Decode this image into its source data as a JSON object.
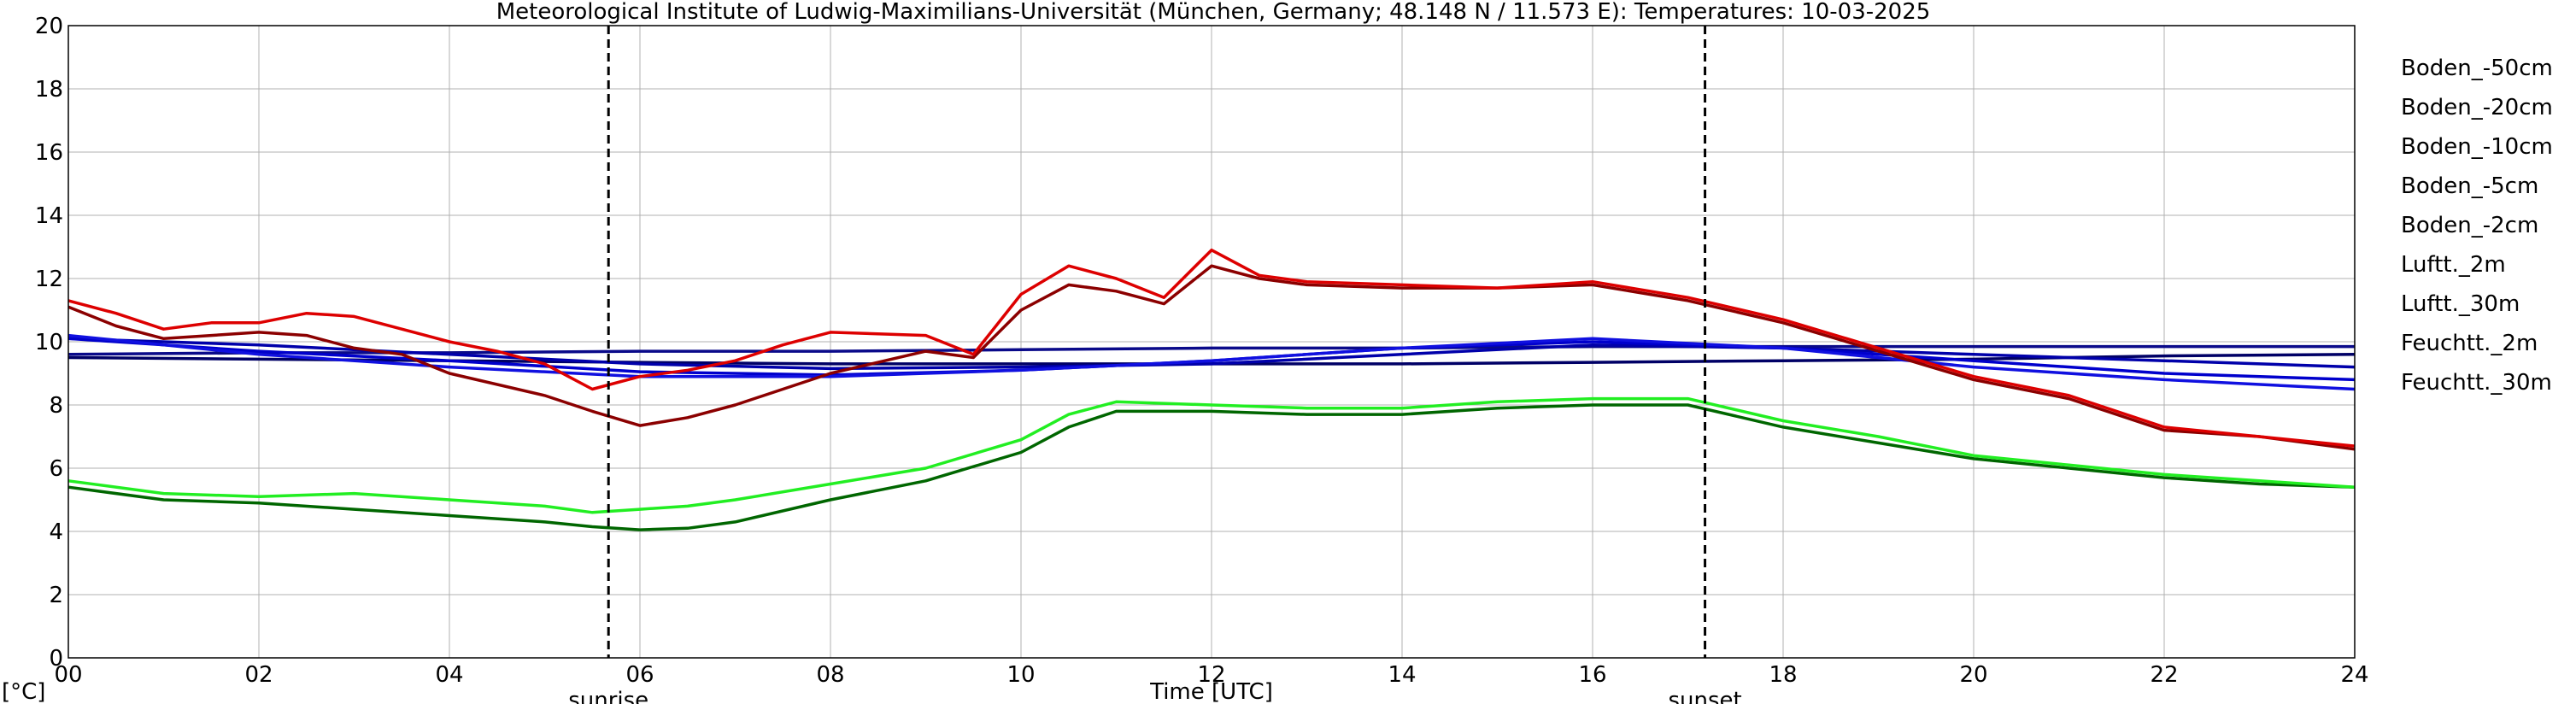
{
  "chart_data": {
    "type": "line",
    "title": "Meteorological Institute of Ludwig-Maximilians-Universität (München, Germany; 48.148 N / 11.573 E):  Temperatures: 10-03-2025",
    "xlabel": "Time [UTC]",
    "ylabel": "[°C]",
    "xlim": [
      0,
      24
    ],
    "ylim": [
      0,
      20
    ],
    "x_ticks": [
      0,
      2,
      4,
      6,
      8,
      10,
      12,
      14,
      16,
      18,
      20,
      22,
      24
    ],
    "x_tick_labels": [
      "00",
      "02",
      "04",
      "06",
      "08",
      "10",
      "12",
      "14",
      "16",
      "18",
      "20",
      "22",
      "24"
    ],
    "y_ticks": [
      0,
      2,
      4,
      6,
      8,
      10,
      12,
      14,
      16,
      18,
      20
    ],
    "y_tick_labels": [
      "0",
      "2",
      "4",
      "6",
      "8",
      "10",
      "12",
      "14",
      "16",
      "18",
      "20"
    ],
    "grid": true,
    "legend_position": "right",
    "markers": [
      {
        "label": "sunrise",
        "x": 5.67
      },
      {
        "label": "sunset",
        "x": 17.18
      }
    ],
    "series": [
      {
        "name": "Boden_-50cm",
        "color": "#000066",
        "x": [
          0,
          2,
          4,
          6,
          8,
          10,
          12,
          14,
          16,
          18,
          20,
          22,
          24
        ],
        "y": [
          9.5,
          9.45,
          9.4,
          9.35,
          9.3,
          9.3,
          9.3,
          9.3,
          9.35,
          9.4,
          9.45,
          9.55,
          9.6
        ]
      },
      {
        "name": "Boden_-20cm",
        "color": "#0a0a8a",
        "x": [
          0,
          2,
          4,
          6,
          8,
          10,
          12,
          14,
          16,
          18,
          20,
          22,
          24
        ],
        "y": [
          9.6,
          9.65,
          9.65,
          9.7,
          9.7,
          9.75,
          9.8,
          9.8,
          9.85,
          9.85,
          9.85,
          9.85,
          9.85
        ]
      },
      {
        "name": "Boden_-10cm",
        "color": "#0000aa",
        "x": [
          0,
          2,
          4,
          6,
          8,
          10,
          12,
          14,
          16,
          18,
          20,
          22,
          24
        ],
        "y": [
          10.1,
          9.9,
          9.6,
          9.3,
          9.15,
          9.2,
          9.3,
          9.6,
          9.9,
          9.8,
          9.6,
          9.4,
          9.2
        ]
      },
      {
        "name": "Boden_-5cm",
        "color": "#0000cc",
        "x": [
          0,
          2,
          4,
          6,
          8,
          10,
          12,
          14,
          16,
          18,
          20,
          22,
          24
        ],
        "y": [
          10.1,
          9.7,
          9.4,
          9.05,
          8.95,
          9.1,
          9.4,
          9.8,
          10.0,
          9.8,
          9.4,
          9.0,
          8.8
        ]
      },
      {
        "name": "Boden_-2cm",
        "color": "#1010e0",
        "x": [
          0,
          2,
          4,
          6,
          8,
          10,
          12,
          14,
          16,
          18,
          20,
          22,
          24
        ],
        "y": [
          10.2,
          9.6,
          9.2,
          8.9,
          8.9,
          9.1,
          9.4,
          9.8,
          10.1,
          9.8,
          9.2,
          8.8,
          8.5
        ]
      },
      {
        "name": "Luftt._2m",
        "color": "#8b0000",
        "x": [
          0,
          0.5,
          1,
          2,
          2.5,
          3,
          3.5,
          4,
          5,
          5.5,
          6,
          6.5,
          7,
          8,
          9,
          9.5,
          10,
          10.5,
          11,
          11.5,
          12,
          12.5,
          13,
          14,
          15,
          16,
          17,
          18,
          19,
          20,
          21,
          22,
          23,
          24
        ],
        "y": [
          11.1,
          10.5,
          10.1,
          10.3,
          10.2,
          9.8,
          9.6,
          9.0,
          8.3,
          7.8,
          7.35,
          7.6,
          8.0,
          9.0,
          9.7,
          9.5,
          11.0,
          11.8,
          11.6,
          11.2,
          12.4,
          12.0,
          11.8,
          11.7,
          11.7,
          11.8,
          11.3,
          10.6,
          9.7,
          8.8,
          8.2,
          7.2,
          7.0,
          6.6
        ]
      },
      {
        "name": "Luftt._30m",
        "color": "#dd0000",
        "x": [
          0,
          0.5,
          1,
          1.5,
          2,
          2.5,
          3,
          3.5,
          4,
          4.5,
          5,
          5.5,
          6,
          6.5,
          7,
          7.5,
          8,
          9,
          9.5,
          10,
          10.5,
          11,
          11.5,
          12,
          12.5,
          13,
          14,
          15,
          16,
          17,
          18,
          19,
          20,
          21,
          22,
          23,
          24
        ],
        "y": [
          11.3,
          10.9,
          10.4,
          10.6,
          10.6,
          10.9,
          10.8,
          10.4,
          10.0,
          9.7,
          9.3,
          8.5,
          8.9,
          9.1,
          9.4,
          9.9,
          10.3,
          10.2,
          9.6,
          11.5,
          12.4,
          12.0,
          11.4,
          12.9,
          12.1,
          11.9,
          11.8,
          11.7,
          11.9,
          11.4,
          10.7,
          9.8,
          8.9,
          8.3,
          7.3,
          7.0,
          6.7
        ]
      },
      {
        "name": "Feuchtt._2m",
        "color": "#006600",
        "x": [
          0,
          1,
          2,
          3,
          4,
          5,
          5.5,
          6,
          6.5,
          7,
          8,
          9,
          10,
          10.5,
          11,
          12,
          13,
          14,
          15,
          16,
          17,
          18,
          19,
          20,
          21,
          22,
          23,
          24
        ],
        "y": [
          5.4,
          5.0,
          4.9,
          4.7,
          4.5,
          4.3,
          4.15,
          4.05,
          4.1,
          4.3,
          5.0,
          5.6,
          6.5,
          7.3,
          7.8,
          7.8,
          7.7,
          7.7,
          7.9,
          8.0,
          8.0,
          7.3,
          6.8,
          6.3,
          6.0,
          5.7,
          5.5,
          5.4
        ]
      },
      {
        "name": "Feuchtt._30m",
        "color": "#22ee22",
        "x": [
          0,
          1,
          2,
          3,
          4,
          5,
          5.5,
          6,
          6.5,
          7,
          8,
          9,
          10,
          10.5,
          11,
          12,
          13,
          14,
          15,
          16,
          17,
          18,
          19,
          20,
          21,
          22,
          23,
          24
        ],
        "y": [
          5.6,
          5.2,
          5.1,
          5.2,
          5.0,
          4.8,
          4.6,
          4.7,
          4.8,
          5.0,
          5.5,
          6.0,
          6.9,
          7.7,
          8.1,
          8.0,
          7.9,
          7.9,
          8.1,
          8.2,
          8.2,
          7.5,
          7.0,
          6.4,
          6.1,
          5.8,
          5.6,
          5.4
        ]
      }
    ]
  }
}
